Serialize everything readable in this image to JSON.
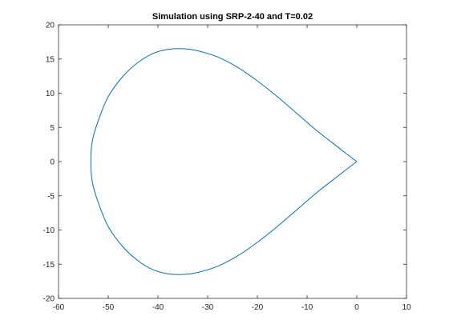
{
  "chart_data": {
    "type": "line",
    "title": "Simulation using SRP-2-40 and T=0.02",
    "xlabel": "",
    "ylabel": "",
    "xlim": [
      -60,
      10
    ],
    "ylim": [
      -20,
      20
    ],
    "x_ticks": [
      "-60",
      "-50",
      "-40",
      "-30",
      "-20",
      "-10",
      "0",
      "10"
    ],
    "y_ticks": [
      "-20",
      "-15",
      "-10",
      "-5",
      "0",
      "5",
      "10",
      "15",
      "20"
    ],
    "grid": false,
    "legend": "none",
    "series": [
      {
        "color": "#0072BD",
        "points": [
          [
            0,
            0
          ],
          [
            -2,
            1.1
          ],
          [
            -5,
            2.8
          ],
          [
            -8,
            4.5
          ],
          [
            -12,
            7.0
          ],
          [
            -16,
            9.5
          ],
          [
            -20,
            11.8
          ],
          [
            -24,
            13.8
          ],
          [
            -28,
            15.3
          ],
          [
            -32,
            16.2
          ],
          [
            -35,
            16.5
          ],
          [
            -38,
            16.4
          ],
          [
            -41,
            15.8
          ],
          [
            -44,
            14.5
          ],
          [
            -47,
            12.5
          ],
          [
            -50,
            9.5
          ],
          [
            -52,
            6.0
          ],
          [
            -53.2,
            3.0
          ],
          [
            -53.5,
            0
          ],
          [
            -53.2,
            -3.0
          ],
          [
            -52,
            -6.0
          ],
          [
            -50,
            -9.5
          ],
          [
            -47,
            -12.5
          ],
          [
            -44,
            -14.5
          ],
          [
            -41,
            -15.8
          ],
          [
            -38,
            -16.4
          ],
          [
            -35,
            -16.5
          ],
          [
            -32,
            -16.2
          ],
          [
            -28,
            -15.3
          ],
          [
            -24,
            -13.8
          ],
          [
            -20,
            -11.8
          ],
          [
            -16,
            -9.5
          ],
          [
            -12,
            -7.0
          ],
          [
            -8,
            -4.5
          ],
          [
            -5,
            -2.8
          ],
          [
            -2,
            -1.1
          ],
          [
            0,
            0
          ]
        ]
      }
    ]
  }
}
